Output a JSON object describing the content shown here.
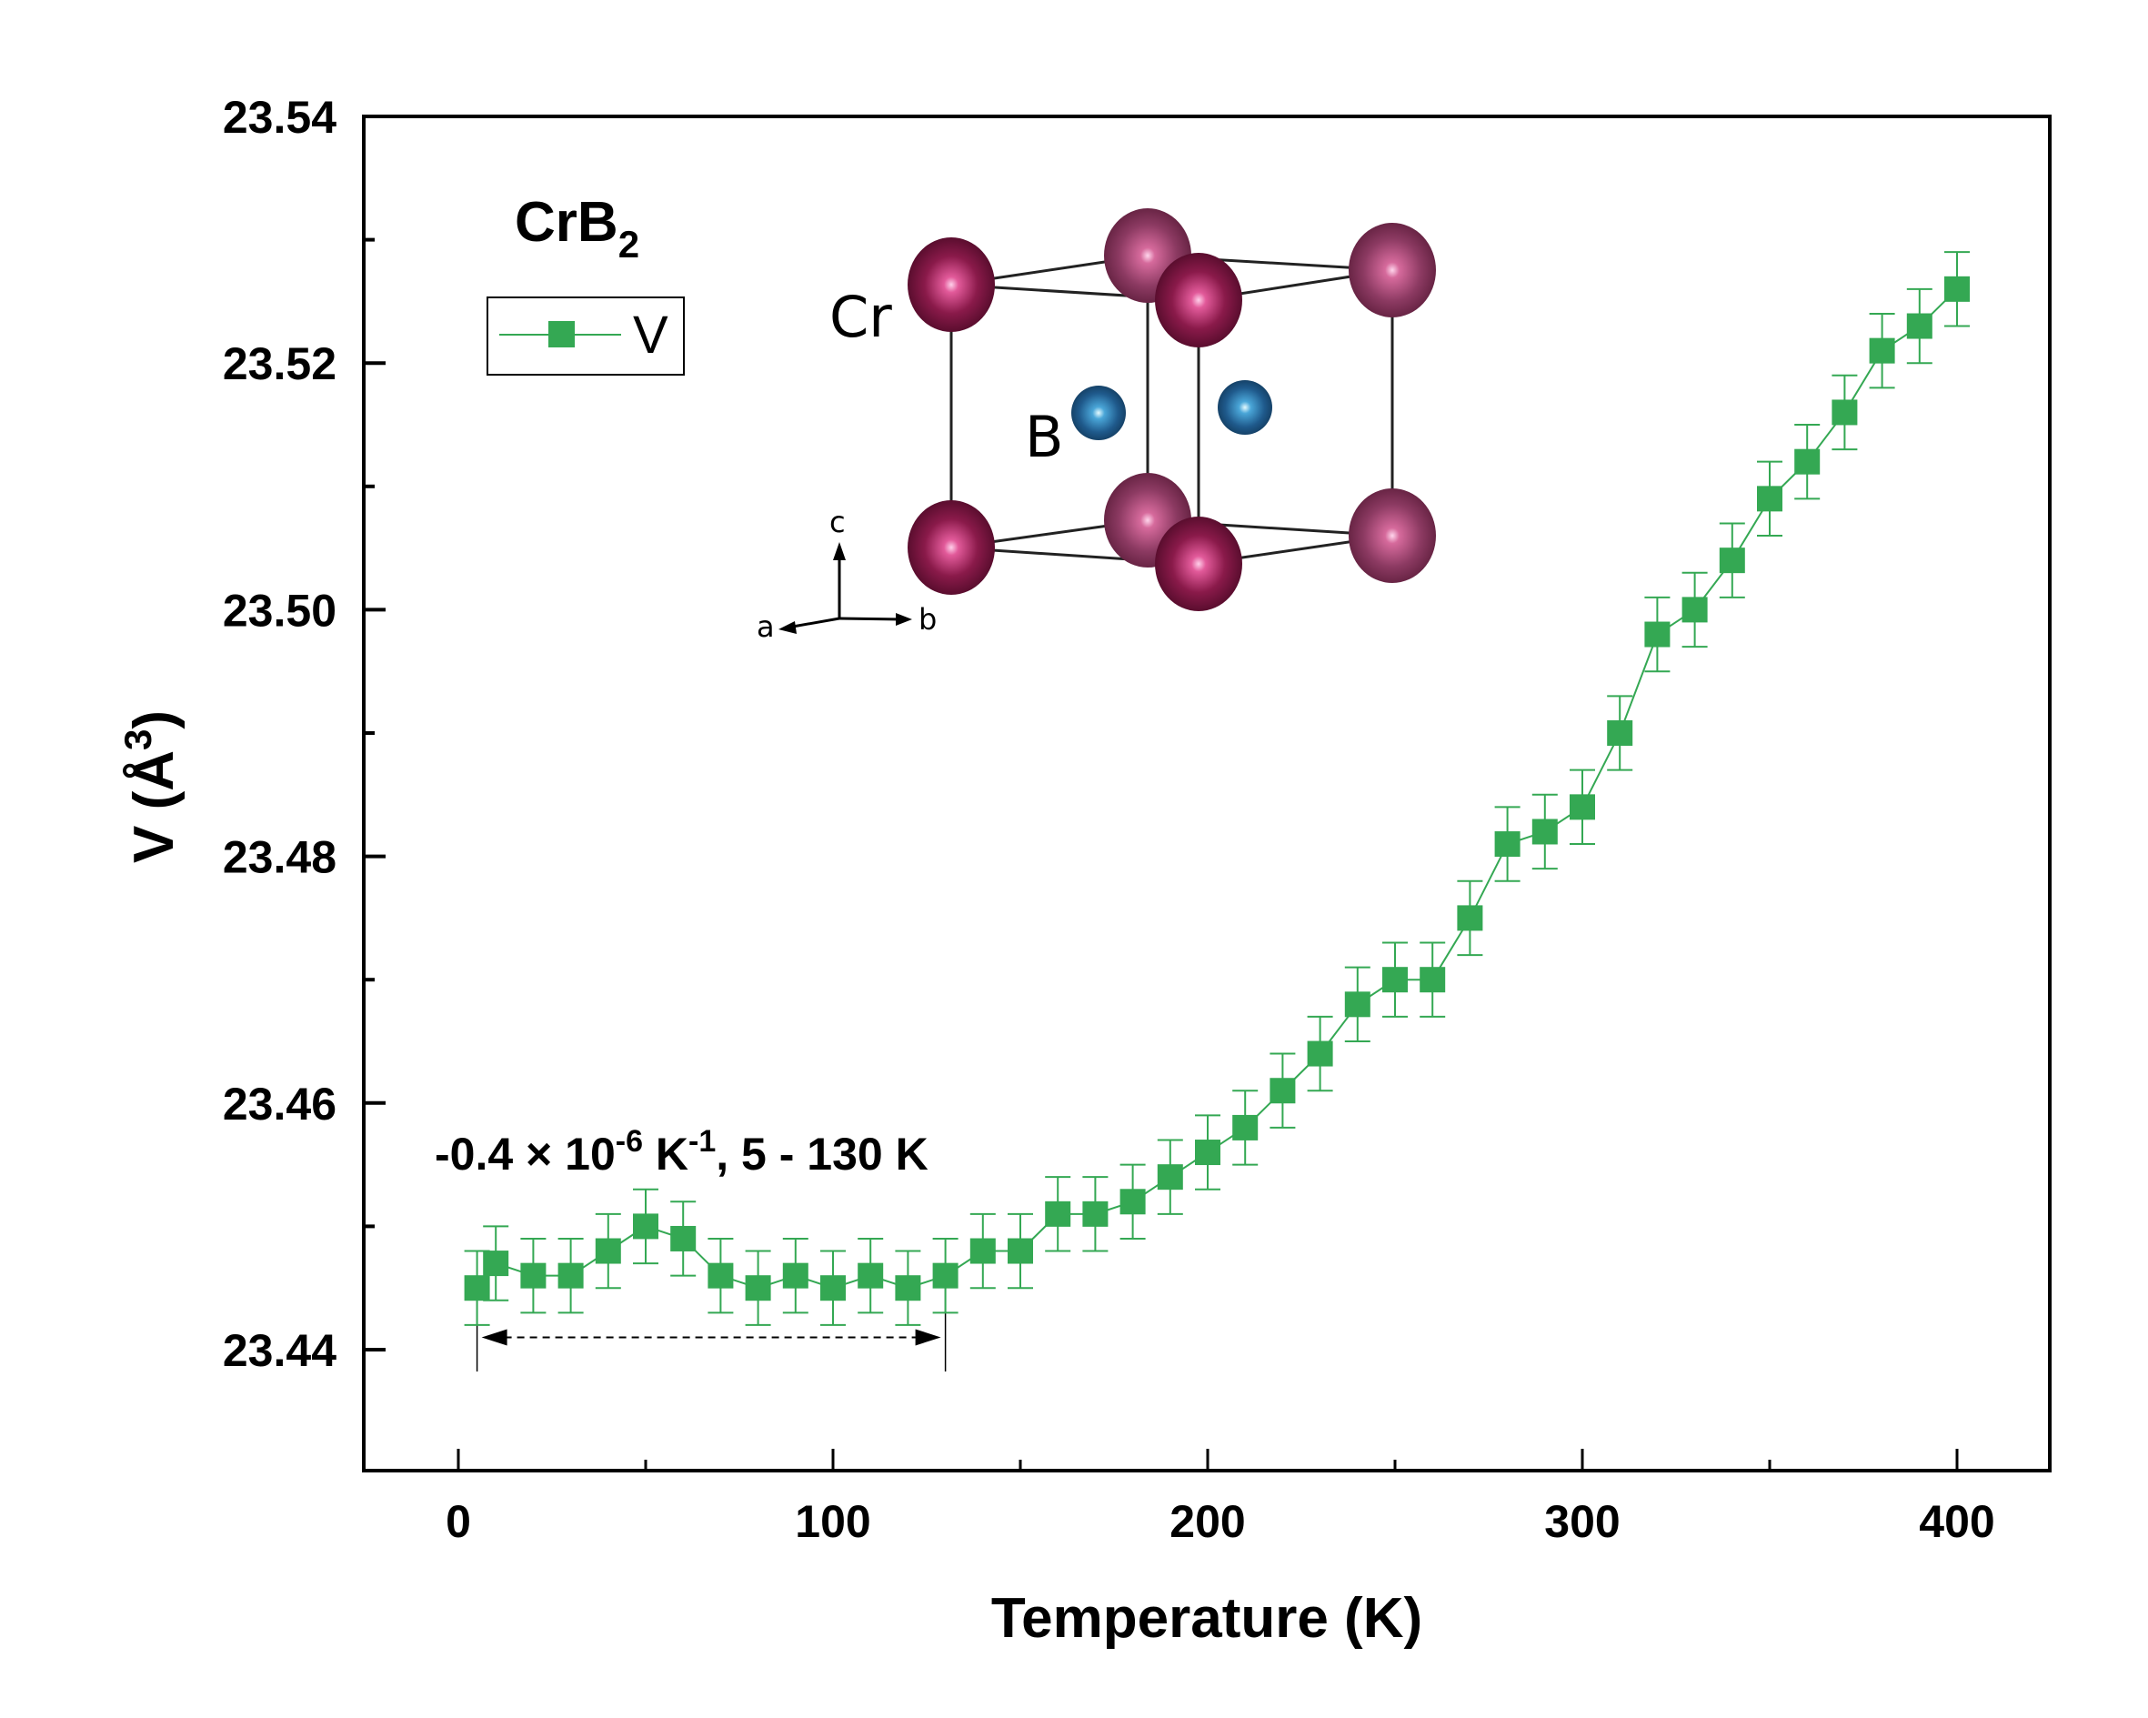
{
  "chart_data": {
    "type": "line",
    "title": "",
    "xlabel": "Temperature (K)",
    "ylabel_main": "V (Å",
    "ylabel_sup": "3",
    "ylabel_close": ")",
    "xlim": [
      -25,
      425
    ],
    "ylim": [
      23.43,
      23.54
    ],
    "xticks": [
      0,
      100,
      200,
      300,
      400
    ],
    "xtick_labels": [
      "0",
      "100",
      "200",
      "300",
      "400"
    ],
    "xminor": [
      50,
      150,
      250,
      350
    ],
    "yticks": [
      23.44,
      23.46,
      23.48,
      23.5,
      23.52,
      23.54
    ],
    "ytick_labels": [
      "23.44",
      "23.46",
      "23.48",
      "23.50",
      "23.52",
      "23.54"
    ],
    "yminor": [
      23.45,
      23.47,
      23.49,
      23.51,
      23.53
    ],
    "grid": false,
    "series": [
      {
        "name": "V",
        "color": "#34a853",
        "marker": "square",
        "x": [
          5,
          10,
          20,
          30,
          40,
          50,
          60,
          70,
          80,
          90,
          100,
          110,
          120,
          130,
          140,
          150,
          160,
          170,
          180,
          190,
          200,
          210,
          220,
          230,
          240,
          250,
          260,
          270,
          280,
          290,
          300,
          310,
          320,
          330,
          340,
          350,
          360,
          370,
          380,
          390,
          400
        ],
        "y": [
          23.445,
          23.447,
          23.446,
          23.446,
          23.448,
          23.45,
          23.449,
          23.446,
          23.445,
          23.446,
          23.445,
          23.446,
          23.445,
          23.446,
          23.448,
          23.448,
          23.451,
          23.451,
          23.452,
          23.454,
          23.456,
          23.458,
          23.461,
          23.464,
          23.468,
          23.47,
          23.47,
          23.475,
          23.481,
          23.482,
          23.484,
          23.49,
          23.498,
          23.5,
          23.504,
          23.509,
          23.512,
          23.516,
          23.521,
          23.523,
          23.526
        ],
        "yerr": 0.003
      }
    ],
    "legend": {
      "placement": "top-left",
      "entries": [
        "V"
      ]
    },
    "compound_label": {
      "main": "CrB",
      "sub": "2"
    },
    "annotation": {
      "parts": [
        "-0.4 × 10",
        "-6",
        " K",
        "-1",
        ", 5 - 130 K"
      ],
      "range_x": [
        5,
        130
      ],
      "range_arrow_y": 23.441
    },
    "inset": {
      "description": "CrB2 crystal structure",
      "labels": {
        "cr": "Cr",
        "b": "B",
        "axis_a": "a",
        "axis_b": "b",
        "axis_c": "c"
      },
      "colors": {
        "cr": "#7a1540",
        "b": "#1f5a8c",
        "bond": "#222222"
      }
    }
  }
}
